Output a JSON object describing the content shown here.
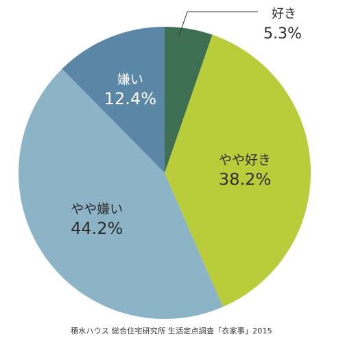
{
  "chart_data": {
    "type": "pie",
    "start": "12 o'clock",
    "direction": "clockwise",
    "slices": [
      {
        "label": "好き",
        "value": 5.3,
        "display": "5.3%",
        "color": "#3f6f52",
        "label_color": "#2b2b2b",
        "callout": true
      },
      {
        "label": "やや好き",
        "value": 38.2,
        "display": "38.2%",
        "color": "#b9cc3a",
        "label_color": "#2b2b2b"
      },
      {
        "label": "やや嫌い",
        "value": 44.2,
        "display": "44.2%",
        "color": "#8db3c6",
        "label_color": "#2b2b2b"
      },
      {
        "label": "嫌い",
        "value": 12.4,
        "display": "12.4%",
        "color": "#5b87a6",
        "label_color": "#ffffff"
      }
    ]
  },
  "source_note": "積水ハウス 総合住宅研究所 生活定点調査「衣家事」2015"
}
